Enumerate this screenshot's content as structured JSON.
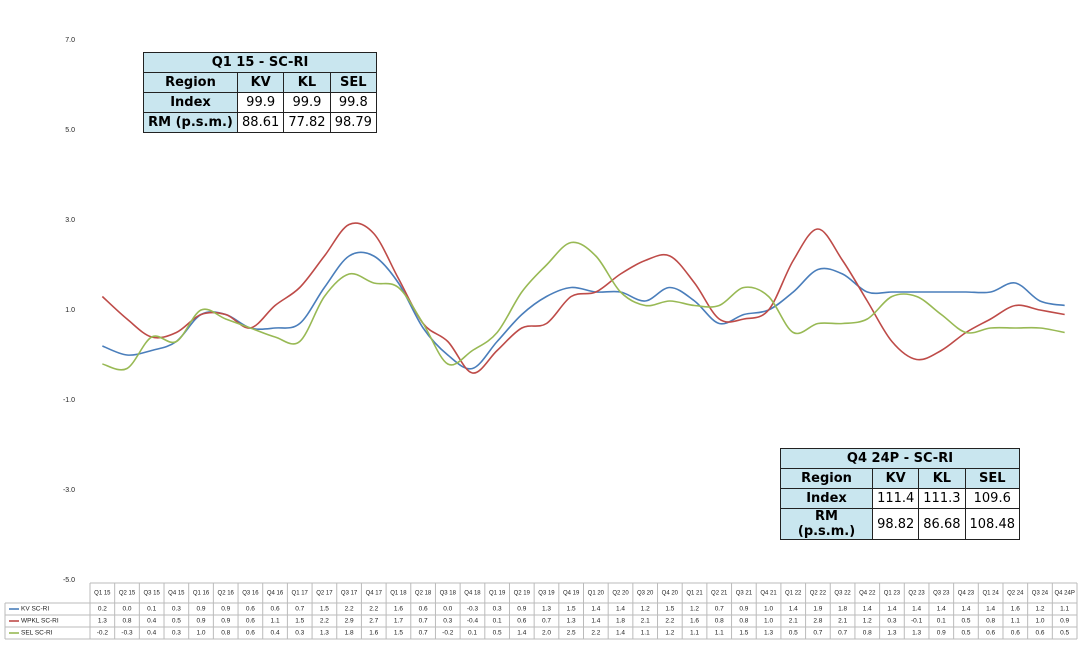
{
  "chart_data": {
    "type": "line",
    "categories": [
      "Q1 15",
      "Q2 15",
      "Q3 15",
      "Q4 15",
      "Q1 16",
      "Q2 16",
      "Q3 16",
      "Q4 16",
      "Q1 17",
      "Q2 17",
      "Q3 17",
      "Q4 17",
      "Q1 18",
      "Q2 18",
      "Q3 18",
      "Q4 18",
      "Q1 19",
      "Q2 19",
      "Q3 19",
      "Q4 19",
      "Q1 20",
      "Q2 20",
      "Q3 20",
      "Q4 20",
      "Q1 21",
      "Q2 21",
      "Q3 21",
      "Q4 21",
      "Q1 22",
      "Q2 22",
      "Q3 22",
      "Q4 22",
      "Q1 23",
      "Q2 23",
      "Q3 23",
      "Q4 23",
      "Q1 24",
      "Q2 24",
      "Q3 24",
      "Q4 24P"
    ],
    "series": [
      {
        "name": "KV SC-RI",
        "color": "#4a7ebb",
        "values": [
          0.2,
          0.0,
          0.1,
          0.3,
          0.9,
          0.9,
          0.6,
          0.6,
          0.7,
          1.5,
          2.2,
          2.2,
          1.6,
          0.6,
          0.0,
          -0.3,
          0.3,
          0.9,
          1.3,
          1.5,
          1.4,
          1.4,
          1.2,
          1.5,
          1.2,
          0.7,
          0.9,
          1.0,
          1.4,
          1.9,
          1.8,
          1.4,
          1.4,
          1.4,
          1.4,
          1.4,
          1.4,
          1.6,
          1.2,
          1.1
        ],
        "value_labels": [
          "0.2",
          "0.0",
          "0.1",
          "0.3",
          "0.9",
          "0.9",
          "0.6",
          "0.6",
          "0.7",
          "1.5",
          "2.2",
          "2.2",
          "1.6",
          "0.6",
          "0.0",
          "-0.3",
          "0.3",
          "0.9",
          "1.3",
          "1.5",
          "1.4",
          "1.4",
          "1.2",
          "1.5",
          "1.2",
          "0.7",
          "0.9",
          "1.0",
          "1.4",
          "1.9",
          "1.8",
          "1.4",
          "1.4",
          "1.4",
          "1.4",
          "1.4",
          "1.4",
          "1.6",
          "1.2",
          "1.1"
        ]
      },
      {
        "name": "WPKL SC-RI",
        "color": "#be4b48",
        "values": [
          1.3,
          0.8,
          0.4,
          0.5,
          0.9,
          0.9,
          0.6,
          1.1,
          1.5,
          2.2,
          2.9,
          2.7,
          1.7,
          0.7,
          0.3,
          -0.4,
          0.1,
          0.6,
          0.7,
          1.3,
          1.4,
          1.8,
          2.1,
          2.2,
          1.6,
          0.8,
          0.8,
          1.0,
          2.1,
          2.8,
          2.1,
          1.2,
          0.3,
          -0.1,
          0.1,
          0.5,
          0.8,
          1.1,
          1.0,
          0.9
        ],
        "value_labels": [
          "1.3",
          "0.8",
          "0.4",
          "0.5",
          "0.9",
          "0.9",
          "0.6",
          "1.1",
          "1.5",
          "2.2",
          "2.9",
          "2.7",
          "1.7",
          "0.7",
          "0.3",
          "-0.4",
          "0.1",
          "0.6",
          "0.7",
          "1.3",
          "1.4",
          "1.8",
          "2.1",
          "2.2",
          "1.6",
          "0.8",
          "0.8",
          "1.0",
          "2.1",
          "2.8",
          "2.1",
          "1.2",
          "0.3",
          "-0.1",
          "0.1",
          "0.5",
          "0.8",
          "1.1",
          "1.0",
          "0.9"
        ]
      },
      {
        "name": "SEL SC-RI",
        "color": "#98b954",
        "values": [
          -0.2,
          -0.3,
          0.4,
          0.3,
          1.0,
          0.8,
          0.6,
          0.4,
          0.3,
          1.3,
          1.8,
          1.6,
          1.5,
          0.7,
          -0.2,
          0.1,
          0.5,
          1.4,
          2.0,
          2.5,
          2.2,
          1.4,
          1.1,
          1.2,
          1.1,
          1.1,
          1.5,
          1.3,
          0.5,
          0.7,
          0.7,
          0.8,
          1.3,
          1.3,
          0.9,
          0.5,
          0.6,
          0.6,
          0.6,
          0.5
        ],
        "value_labels": [
          "-0.2",
          "-0.3",
          "0.4",
          "0.3",
          "1.0",
          "0.8",
          "0.6",
          "0.4",
          "0.3",
          "1.3",
          "1.8",
          "1.6",
          "1.5",
          "0.7",
          "-0.2",
          "0.1",
          "0.5",
          "1.4",
          "2.0",
          "2.5",
          "2.2",
          "1.4",
          "1.1",
          "1.2",
          "1.1",
          "1.1",
          "1.5",
          "1.3",
          "0.5",
          "0.7",
          "0.7",
          "0.8",
          "1.3",
          "1.3",
          "0.9",
          "0.5",
          "0.6",
          "0.6",
          "0.6",
          "0.5"
        ]
      }
    ],
    "ylim": [
      -5,
      7
    ],
    "yticks": [
      {
        "value": 7,
        "label": "7.0"
      },
      {
        "value": 5,
        "label": "5.0"
      },
      {
        "value": 3,
        "label": "3.0"
      },
      {
        "value": 1,
        "label": "1.0"
      },
      {
        "value": -1,
        "label": "-1.0"
      },
      {
        "value": -3,
        "label": "-3.0"
      },
      {
        "value": -5,
        "label": "-5.0"
      }
    ],
    "grid": false
  },
  "insets": [
    {
      "title": "Q1 15 - SC-RI",
      "header": [
        "Region",
        "KV",
        "KL",
        "SEL"
      ],
      "rows": [
        [
          "Index",
          "99.9",
          "99.9",
          "99.8"
        ],
        [
          "RM (p.s.m.)",
          "88.61",
          "77.82",
          "98.79"
        ]
      ]
    },
    {
      "title": "Q4 24P - SC-RI",
      "header": [
        "Region",
        "KV",
        "KL",
        "SEL"
      ],
      "rows": [
        [
          "Index",
          "111.4",
          "111.3",
          "109.6"
        ],
        [
          "RM (p.s.m.)",
          "98.82",
          "86.68",
          "108.48"
        ]
      ]
    }
  ]
}
